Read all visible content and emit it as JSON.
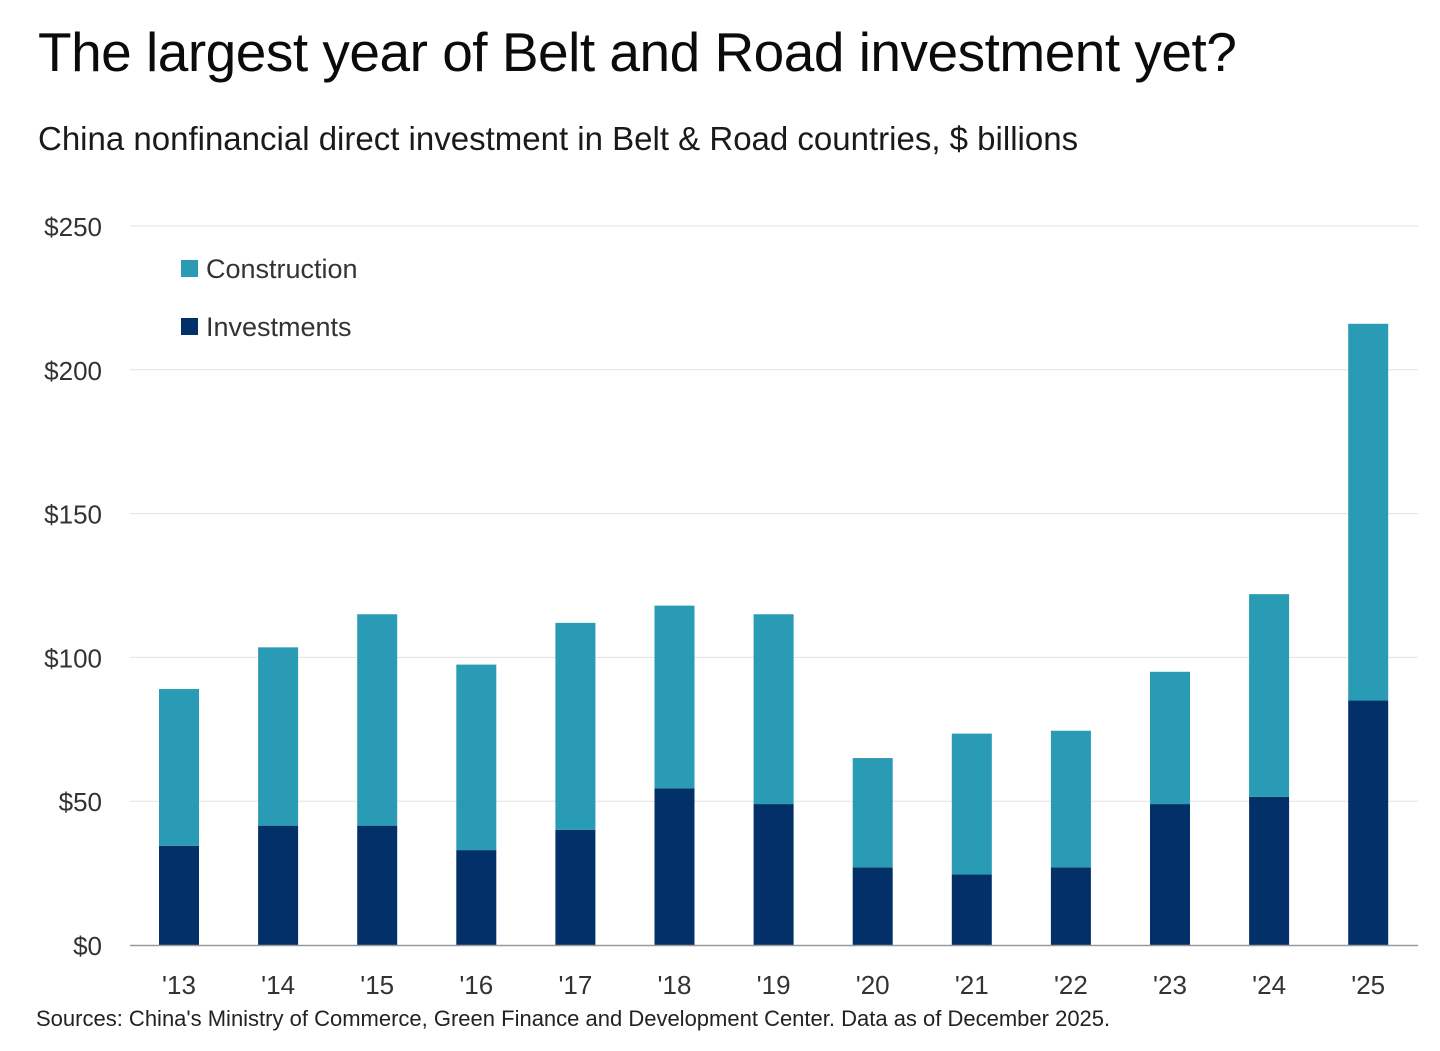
{
  "header": {
    "title": "The largest year of Belt and Road investment yet?",
    "subtitle": "China nonfinancial direct investment in Belt & Road countries, $ billions"
  },
  "footer": {
    "source": "Sources: China's Ministry of Commerce, Green Finance and Development Center. Data as of December 2025."
  },
  "chart_data": {
    "type": "bar",
    "stacked": true,
    "title": "The largest year of Belt and Road investment yet?",
    "subtitle": "China nonfinancial direct investment in Belt & Road countries, $ billions",
    "categories": [
      "'13",
      "'14",
      "'15",
      "'16",
      "'17",
      "'18",
      "'19",
      "'20",
      "'21",
      "'22",
      "'23",
      "'24",
      "'25"
    ],
    "series": [
      {
        "name": "Investments",
        "color": "#04306a",
        "values": [
          34.5,
          41.5,
          41.5,
          33,
          40,
          54.5,
          49,
          27,
          24.5,
          27,
          49,
          51.5,
          85
        ]
      },
      {
        "name": "Construction",
        "color": "#2a9bb4",
        "values": [
          54.5,
          62,
          73.5,
          64.5,
          72,
          63.5,
          66,
          38,
          49,
          47.5,
          46,
          70.5,
          131
        ]
      }
    ],
    "yticks": [
      "$0",
      "$50",
      "$100",
      "$150",
      "$200",
      "$250"
    ],
    "ytick_values": [
      0,
      50,
      100,
      150,
      200,
      250
    ],
    "ylim": [
      0,
      250
    ],
    "xlabel": "",
    "ylabel": "",
    "grid": true,
    "legend": {
      "placement": "top-left",
      "order": [
        "Construction",
        "Investments"
      ]
    }
  }
}
